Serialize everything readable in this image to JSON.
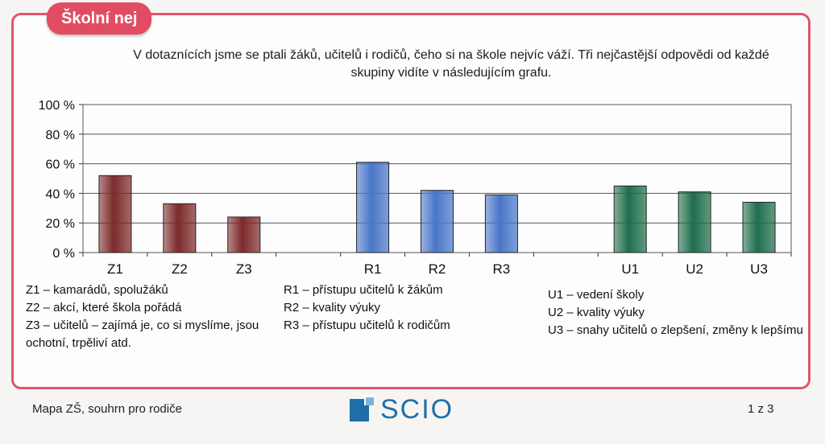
{
  "section_tab": "Školní nej",
  "intro_text": "V dotaznících jsme se ptali žáků, učitelů i rodičů, čeho si na škole nejvíc váží. Tři nejčastější odpovědi od každé skupiny vidíte v následujícím grafu.",
  "chart_data": {
    "type": "bar",
    "categories": [
      "Z1",
      "Z2",
      "Z3",
      "R1",
      "R2",
      "R3",
      "U1",
      "U2",
      "U3"
    ],
    "values": [
      52,
      33,
      24,
      61,
      42,
      39,
      45,
      41,
      34
    ],
    "groups": [
      {
        "categories": [
          "Z1",
          "Z2",
          "Z3"
        ],
        "color": "#7d2a2a"
      },
      {
        "categories": [
          "R1",
          "R2",
          "R3"
        ],
        "color": "#4a76c8"
      },
      {
        "categories": [
          "U1",
          "U2",
          "U3"
        ],
        "color": "#1f6e4c"
      }
    ],
    "yticks": [
      "0 %",
      "20 %",
      "40 %",
      "60 %",
      "80 %",
      "100 %"
    ],
    "ylim": [
      0,
      100
    ],
    "grid": true
  },
  "legend": {
    "z": [
      "Z1 – kamarádů, spolužáků",
      "Z2 – akcí, které škola pořádá",
      "Z3 – učitelů – zajímá je, co si myslíme, jsou",
      "ochotní, trpěliví atd."
    ],
    "r": [
      "R1 – přístupu učitelů k žákům",
      "R2 – kvality výuky",
      "R3 – přístupu učitelů k rodičům"
    ],
    "u": [
      "U1 – vedení školy",
      "U2 – kvality výuky",
      "U3 – snahy učitelů o zlepšení, změny k lepšímu"
    ]
  },
  "footer": {
    "left": "Mapa ZŠ, souhrn pro rodiče",
    "logo_text": "SCIO",
    "page": "1 z 3"
  },
  "colors": {
    "frame": "#e0566a",
    "tab": "#e24c63",
    "logo": "#1e6fa8"
  }
}
